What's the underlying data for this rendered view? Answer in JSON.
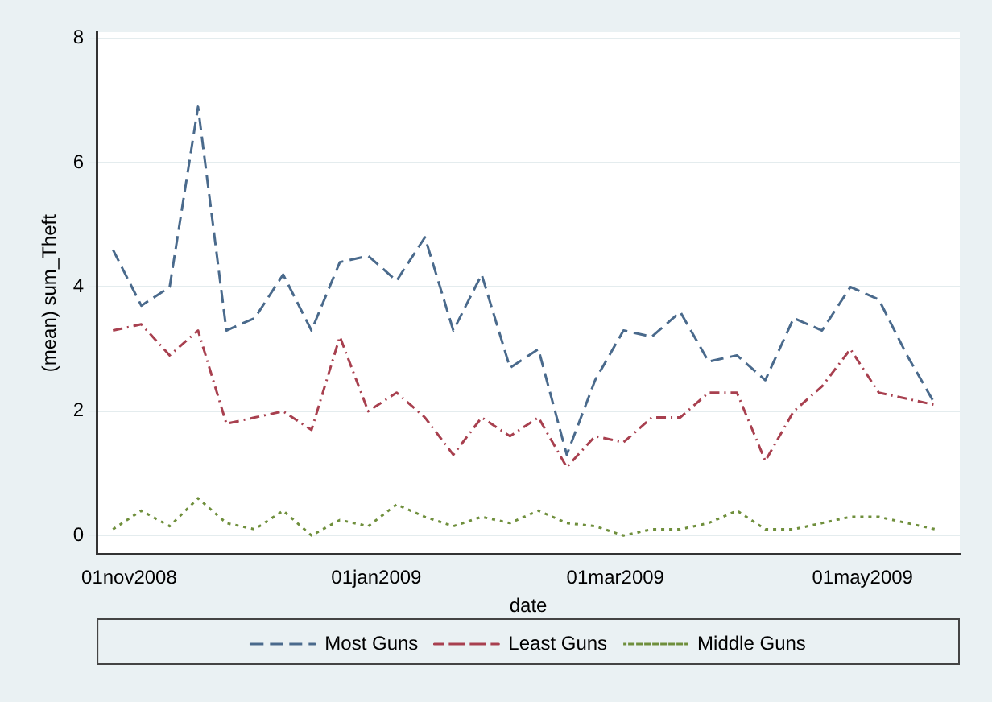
{
  "chart_data": {
    "type": "line",
    "xlabel": "date",
    "ylabel": "(mean) sum_Theft",
    "x": [
      "2008-10-28",
      "2008-11-04",
      "2008-11-11",
      "2008-11-18",
      "2008-11-25",
      "2008-12-02",
      "2008-12-09",
      "2008-12-16",
      "2008-12-23",
      "2008-12-30",
      "2009-01-06",
      "2009-01-13",
      "2009-01-20",
      "2009-01-27",
      "2009-02-03",
      "2009-02-10",
      "2009-02-17",
      "2009-02-24",
      "2009-03-03",
      "2009-03-10",
      "2009-03-17",
      "2009-03-24",
      "2009-03-31",
      "2009-04-07",
      "2009-04-14",
      "2009-04-21",
      "2009-04-28",
      "2009-05-05",
      "2009-05-12",
      "2009-05-19"
    ],
    "series": [
      {
        "name": "Most Guns",
        "color": "#4a6a8c",
        "line_style": "dashed",
        "values": [
          4.6,
          3.7,
          4.0,
          6.9,
          3.3,
          3.5,
          4.2,
          3.3,
          4.4,
          4.5,
          4.1,
          4.8,
          3.3,
          4.2,
          2.7,
          3.0,
          1.3,
          2.5,
          3.3,
          3.2,
          3.6,
          2.8,
          2.9,
          2.5,
          3.5,
          3.3,
          4.0,
          3.8,
          2.9,
          2.1
        ]
      },
      {
        "name": "Least Guns",
        "color": "#a8404f",
        "line_style": "dashdot",
        "values": [
          3.3,
          3.4,
          2.9,
          3.3,
          1.8,
          1.9,
          2.0,
          1.7,
          3.2,
          2.0,
          2.3,
          1.9,
          1.3,
          1.9,
          1.6,
          1.9,
          1.1,
          1.6,
          1.5,
          1.9,
          1.9,
          2.3,
          2.3,
          1.2,
          2.0,
          2.4,
          3.0,
          2.3,
          2.2,
          2.1
        ]
      },
      {
        "name": "Middle Guns",
        "color": "#6f8f3c",
        "line_style": "dotted",
        "values": [
          0.1,
          0.4,
          0.15,
          0.6,
          0.2,
          0.1,
          0.4,
          0.0,
          0.25,
          0.15,
          0.5,
          0.3,
          0.15,
          0.3,
          0.2,
          0.4,
          0.2,
          0.15,
          0.0,
          0.1,
          0.1,
          0.2,
          0.4,
          0.1,
          0.1,
          0.2,
          0.3,
          0.3,
          0.2,
          0.1
        ]
      }
    ],
    "xlim": [
      "2008-10-24",
      "2009-05-25"
    ],
    "xticks": [
      {
        "value": "2008-11-01",
        "label": "01nov2008"
      },
      {
        "value": "2009-01-01",
        "label": "01jan2009"
      },
      {
        "value": "2009-03-01",
        "label": "01mar2009"
      },
      {
        "value": "2009-05-01",
        "label": "01may2009"
      }
    ],
    "ylim": [
      -0.3,
      8.1
    ],
    "yticks": [
      0,
      2,
      4,
      6,
      8
    ],
    "grid": "y",
    "legend": "bottom",
    "marker": "none"
  }
}
